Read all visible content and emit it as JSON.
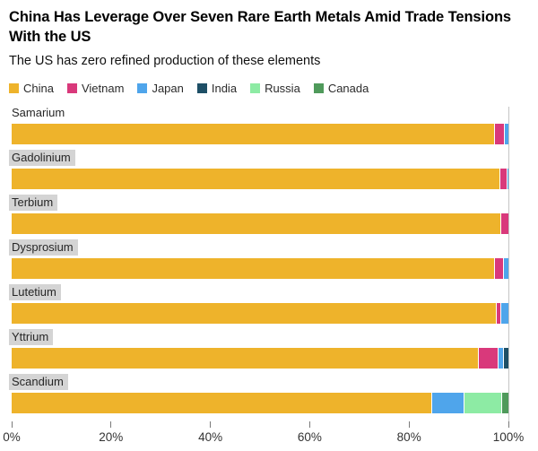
{
  "header": {
    "title": "China Has Leverage Over Seven Rare Earth Metals Amid Trade Tensions With the US",
    "subtitle": "The US has zero refined production of these elements"
  },
  "chart_data": {
    "type": "bar",
    "orientation": "horizontal-stacked",
    "unit": "percent of refined production",
    "categories": [
      "Samarium",
      "Gadolinium",
      "Terbium",
      "Dysprosium",
      "Lutetium",
      "Yttrium",
      "Scandium"
    ],
    "series": [
      {
        "name": "China",
        "color": "#EEB32B",
        "values": [
          97.2,
          98.2,
          98.3,
          97.1,
          97.5,
          93.9,
          84.5
        ]
      },
      {
        "name": "Vietnam",
        "color": "#D9397B",
        "values": [
          1.9,
          1.4,
          1.7,
          1.8,
          0.9,
          3.9,
          0
        ]
      },
      {
        "name": "Japan",
        "color": "#4FA5EB",
        "values": [
          0.9,
          0.4,
          0,
          1.1,
          1.6,
          1.2,
          6.5
        ]
      },
      {
        "name": "India",
        "color": "#1E4F66",
        "values": [
          0,
          0,
          0,
          0,
          0,
          1.0,
          0
        ]
      },
      {
        "name": "Russia",
        "color": "#8DEBA4",
        "values": [
          0,
          0,
          0,
          0,
          0,
          0,
          7.5
        ]
      },
      {
        "name": "Canada",
        "color": "#4F9A5B",
        "values": [
          0,
          0,
          0,
          0,
          0,
          0,
          1.5
        ]
      }
    ],
    "xlim": [
      0,
      100
    ],
    "x_ticks": [
      "0%",
      "20%",
      "40%",
      "60%",
      "80%",
      "100%"
    ],
    "grid": "single vertical gridline at 100%",
    "legend_position": "top"
  }
}
